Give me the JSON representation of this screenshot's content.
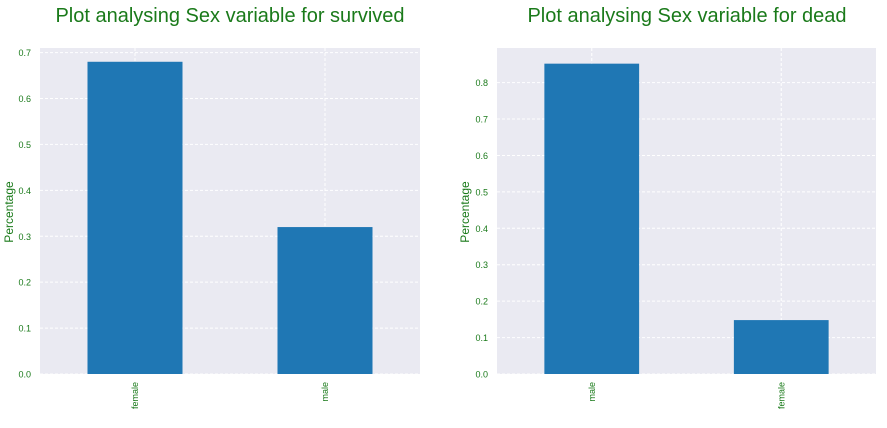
{
  "colors": {
    "title": "#1a7a1a",
    "tick": "#1a7a1a",
    "ylabel": "#1a7a1a",
    "bar": "#1f77b4",
    "plot_bg": "#eaeaf2",
    "grid": "#ffffff"
  },
  "chart_data": [
    {
      "type": "bar",
      "title": "Plot analysing Sex variable for survived",
      "xlabel": "",
      "ylabel": "Percentage",
      "categories": [
        "female",
        "male"
      ],
      "values": [
        0.68,
        0.32
      ],
      "ylim": [
        0,
        0.71
      ],
      "yticks": [
        "0.0",
        "0.1",
        "0.2",
        "0.3",
        "0.4",
        "0.5",
        "0.6",
        "0.7"
      ],
      "grid": true,
      "legend": "none"
    },
    {
      "type": "bar",
      "title": "Plot analysing Sex variable for dead",
      "xlabel": "",
      "ylabel": "Percentage",
      "categories": [
        "male",
        "female"
      ],
      "values": [
        0.852,
        0.148
      ],
      "ylim": [
        0,
        0.895
      ],
      "yticks": [
        "0.0",
        "0.1",
        "0.2",
        "0.3",
        "0.4",
        "0.5",
        "0.6",
        "0.7",
        "0.8"
      ],
      "grid": true,
      "legend": "none"
    }
  ]
}
